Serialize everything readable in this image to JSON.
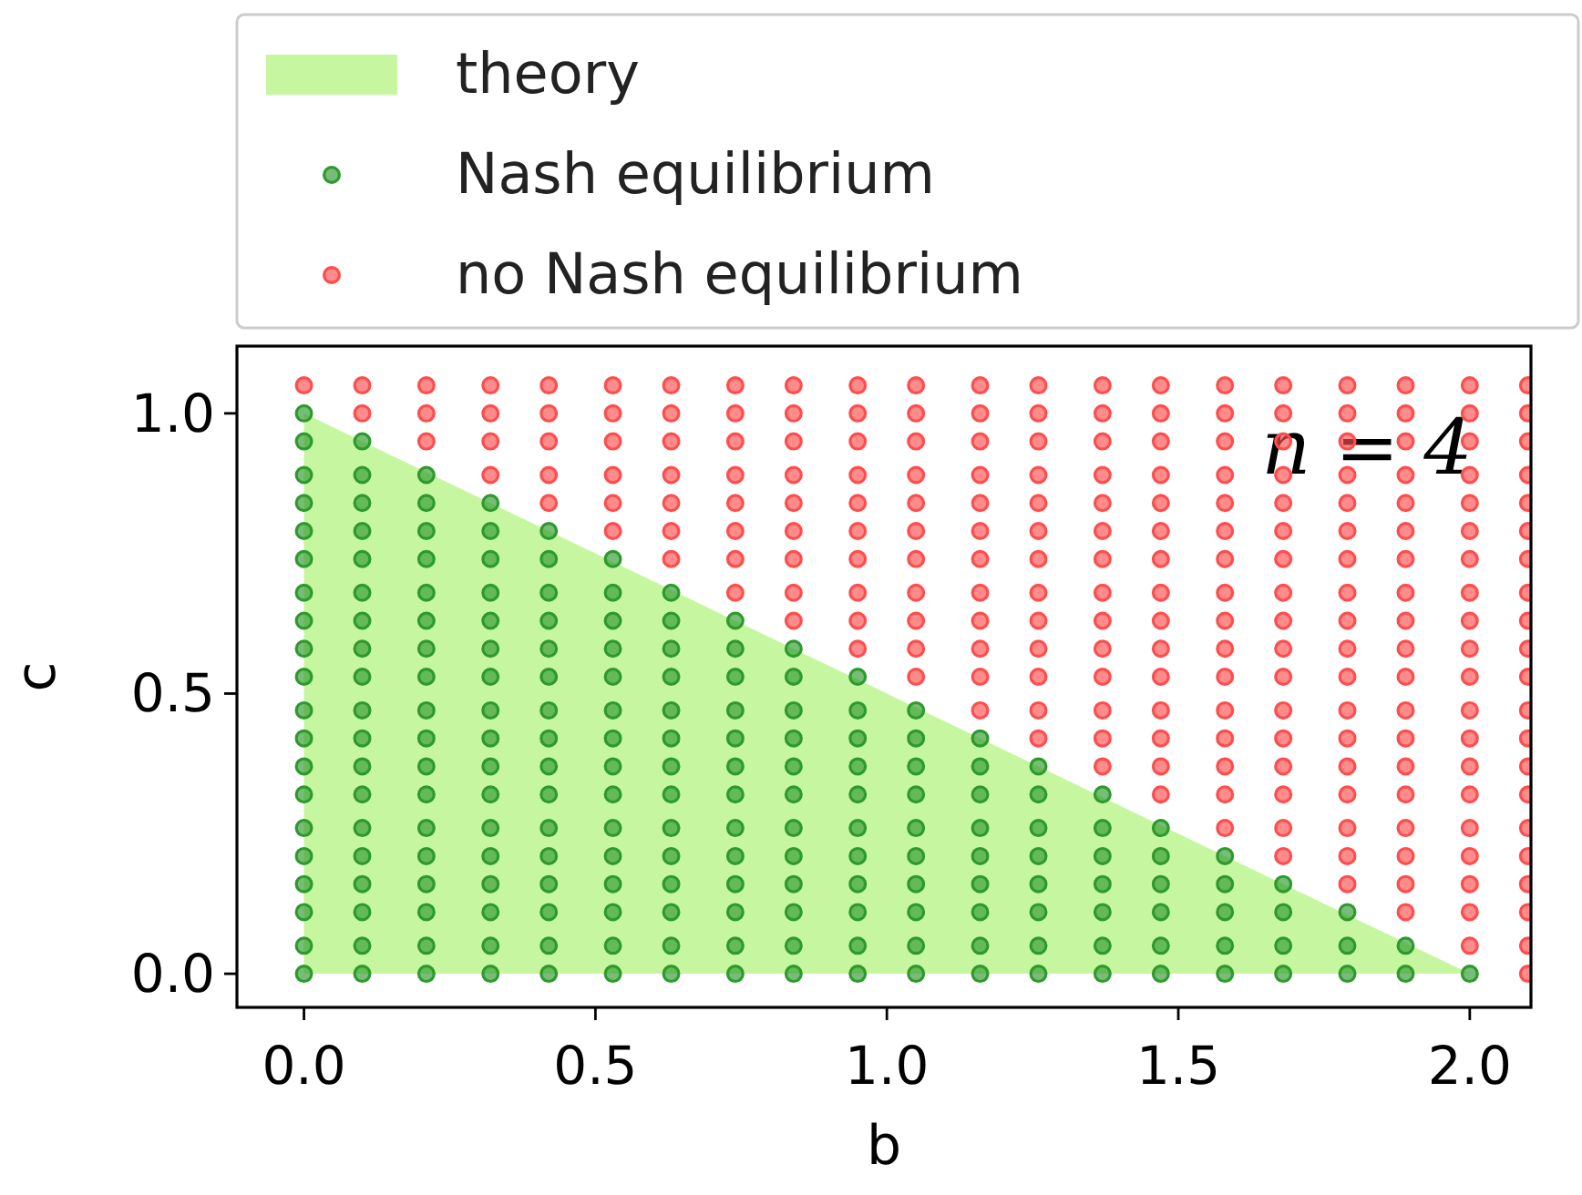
{
  "chart_data": {
    "type": "scatter",
    "xlabel": "b",
    "ylabel": "c",
    "xlim": [
      -0.115,
      2.105
    ],
    "ylim": [
      -0.06,
      1.12
    ],
    "xticks": [
      {
        "value": 0,
        "label": "0.0"
      },
      {
        "value": 0.5,
        "label": "0.5"
      },
      {
        "value": 1,
        "label": "1.0"
      },
      {
        "value": 1.5,
        "label": "1.5"
      },
      {
        "value": 2,
        "label": "2.0"
      }
    ],
    "yticks": [
      {
        "value": 0,
        "label": "0.0"
      },
      {
        "value": 0.5,
        "label": "0.5"
      },
      {
        "value": 1,
        "label": "1.0"
      }
    ],
    "legend": "top",
    "annotations": [
      "n = 4"
    ],
    "series": [
      {
        "name": "theory",
        "type": "area",
        "color": "#c6f7a0",
        "x": [
          0,
          2
        ],
        "values": [
          1,
          0
        ]
      },
      {
        "name": "Nash equilibrium",
        "color": "#2e9a2e",
        "marker": "circle",
        "x": [
          0,
          0,
          0,
          0,
          0,
          0,
          0,
          0,
          0,
          0,
          0,
          0,
          0,
          0,
          0,
          0,
          0,
          0,
          0,
          0,
          0.1,
          0.1,
          0.1,
          0.1,
          0.1,
          0.1,
          0.1,
          0.1,
          0.1,
          0.1,
          0.1,
          0.1,
          0.1,
          0.1,
          0.1,
          0.1,
          0.1,
          0.1,
          0.1,
          0.21,
          0.21,
          0.21,
          0.21,
          0.21,
          0.21,
          0.21,
          0.21,
          0.21,
          0.21,
          0.21,
          0.21,
          0.21,
          0.21,
          0.21,
          0.21,
          0.21,
          0.21,
          0.32,
          0.32,
          0.32,
          0.32,
          0.32,
          0.32,
          0.32,
          0.32,
          0.32,
          0.32,
          0.32,
          0.32,
          0.32,
          0.32,
          0.32,
          0.32,
          0.32,
          0.42,
          0.42,
          0.42,
          0.42,
          0.42,
          0.42,
          0.42,
          0.42,
          0.42,
          0.42,
          0.42,
          0.42,
          0.42,
          0.42,
          0.42,
          0.42,
          0.53,
          0.53,
          0.53,
          0.53,
          0.53,
          0.53,
          0.53,
          0.53,
          0.53,
          0.53,
          0.53,
          0.53,
          0.53,
          0.53,
          0.53,
          0.63,
          0.63,
          0.63,
          0.63,
          0.63,
          0.63,
          0.63,
          0.63,
          0.63,
          0.63,
          0.63,
          0.63,
          0.63,
          0.63,
          0.74,
          0.74,
          0.74,
          0.74,
          0.74,
          0.74,
          0.74,
          0.74,
          0.74,
          0.74,
          0.74,
          0.74,
          0.74,
          0.84,
          0.84,
          0.84,
          0.84,
          0.84,
          0.84,
          0.84,
          0.84,
          0.84,
          0.84,
          0.84,
          0.84,
          0.95,
          0.95,
          0.95,
          0.95,
          0.95,
          0.95,
          0.95,
          0.95,
          0.95,
          0.95,
          0.95,
          1.05,
          1.05,
          1.05,
          1.05,
          1.05,
          1.05,
          1.05,
          1.05,
          1.05,
          1.05,
          1.16,
          1.16,
          1.16,
          1.16,
          1.16,
          1.16,
          1.16,
          1.16,
          1.16,
          1.26,
          1.26,
          1.26,
          1.26,
          1.26,
          1.26,
          1.26,
          1.26,
          1.37,
          1.37,
          1.37,
          1.37,
          1.37,
          1.37,
          1.37,
          1.47,
          1.47,
          1.47,
          1.47,
          1.47,
          1.47,
          1.58,
          1.58,
          1.58,
          1.58,
          1.58,
          1.68,
          1.68,
          1.68,
          1.68,
          1.79,
          1.79,
          1.79,
          1.89,
          1.89,
          2.0
        ],
        "values": [
          0,
          0.05,
          0.11,
          0.16,
          0.21,
          0.26,
          0.32,
          0.37,
          0.42,
          0.47,
          0.53,
          0.58,
          0.63,
          0.68,
          0.74,
          0.79,
          0.84,
          0.89,
          0.95,
          1.0,
          0,
          0.05,
          0.11,
          0.16,
          0.21,
          0.26,
          0.32,
          0.37,
          0.42,
          0.47,
          0.53,
          0.58,
          0.63,
          0.68,
          0.74,
          0.79,
          0.84,
          0.89,
          0.95,
          0,
          0.05,
          0.11,
          0.16,
          0.21,
          0.26,
          0.32,
          0.37,
          0.42,
          0.47,
          0.53,
          0.58,
          0.63,
          0.68,
          0.74,
          0.79,
          0.84,
          0.89,
          0,
          0.05,
          0.11,
          0.16,
          0.21,
          0.26,
          0.32,
          0.37,
          0.42,
          0.47,
          0.53,
          0.58,
          0.63,
          0.68,
          0.74,
          0.79,
          0.84,
          0,
          0.05,
          0.11,
          0.16,
          0.21,
          0.26,
          0.32,
          0.37,
          0.42,
          0.47,
          0.53,
          0.58,
          0.63,
          0.68,
          0.74,
          0.79,
          0,
          0.05,
          0.11,
          0.16,
          0.21,
          0.26,
          0.32,
          0.37,
          0.42,
          0.47,
          0.53,
          0.58,
          0.63,
          0.68,
          0.74,
          0,
          0.05,
          0.11,
          0.16,
          0.21,
          0.26,
          0.32,
          0.37,
          0.42,
          0.47,
          0.53,
          0.58,
          0.63,
          0.68,
          0,
          0.05,
          0.11,
          0.16,
          0.21,
          0.26,
          0.32,
          0.37,
          0.42,
          0.47,
          0.53,
          0.58,
          0.63,
          0,
          0.05,
          0.11,
          0.16,
          0.21,
          0.26,
          0.32,
          0.37,
          0.42,
          0.47,
          0.53,
          0.58,
          0,
          0.05,
          0.11,
          0.16,
          0.21,
          0.26,
          0.32,
          0.37,
          0.42,
          0.47,
          0.53,
          0,
          0.05,
          0.11,
          0.16,
          0.21,
          0.26,
          0.32,
          0.37,
          0.42,
          0.47,
          0,
          0.05,
          0.11,
          0.16,
          0.21,
          0.26,
          0.32,
          0.37,
          0.42,
          0,
          0.05,
          0.11,
          0.16,
          0.21,
          0.26,
          0.32,
          0.37,
          0,
          0.05,
          0.11,
          0.16,
          0.21,
          0.26,
          0.32,
          0,
          0.05,
          0.11,
          0.16,
          0.21,
          0.26,
          0,
          0.05,
          0.11,
          0.16,
          0.21,
          0,
          0.05,
          0.11,
          0.16,
          0,
          0.05,
          0.11,
          0,
          0.05,
          0
        ]
      },
      {
        "name": "no Nash equilibrium",
        "color": "#ff4d4d",
        "marker": "circle",
        "x": [
          0,
          0.1,
          0.1,
          0.21,
          0.21,
          0.21,
          0.32,
          0.32,
          0.32,
          0.32,
          0.42,
          0.42,
          0.42,
          0.42,
          0.42,
          0.53,
          0.53,
          0.53,
          0.53,
          0.53,
          0.53,
          0.63,
          0.63,
          0.63,
          0.63,
          0.63,
          0.63,
          0.63,
          0.74,
          0.74,
          0.74,
          0.74,
          0.74,
          0.74,
          0.74,
          0.74,
          0.84,
          0.84,
          0.84,
          0.84,
          0.84,
          0.84,
          0.84,
          0.84,
          0.84,
          0.95,
          0.95,
          0.95,
          0.95,
          0.95,
          0.95,
          0.95,
          0.95,
          0.95,
          0.95,
          1.05,
          1.05,
          1.05,
          1.05,
          1.05,
          1.05,
          1.05,
          1.05,
          1.05,
          1.05,
          1.05,
          1.16,
          1.16,
          1.16,
          1.16,
          1.16,
          1.16,
          1.16,
          1.16,
          1.16,
          1.16,
          1.16,
          1.16,
          1.26,
          1.26,
          1.26,
          1.26,
          1.26,
          1.26,
          1.26,
          1.26,
          1.26,
          1.26,
          1.26,
          1.26,
          1.26,
          1.37,
          1.37,
          1.37,
          1.37,
          1.37,
          1.37,
          1.37,
          1.37,
          1.37,
          1.37,
          1.37,
          1.37,
          1.37,
          1.37,
          1.47,
          1.47,
          1.47,
          1.47,
          1.47,
          1.47,
          1.47,
          1.47,
          1.47,
          1.47,
          1.47,
          1.47,
          1.47,
          1.47,
          1.47,
          1.58,
          1.58,
          1.58,
          1.58,
          1.58,
          1.58,
          1.58,
          1.58,
          1.58,
          1.58,
          1.58,
          1.58,
          1.58,
          1.58,
          1.58,
          1.58,
          1.68,
          1.68,
          1.68,
          1.68,
          1.68,
          1.68,
          1.68,
          1.68,
          1.68,
          1.68,
          1.68,
          1.68,
          1.68,
          1.68,
          1.68,
          1.68,
          1.68,
          1.79,
          1.79,
          1.79,
          1.79,
          1.79,
          1.79,
          1.79,
          1.79,
          1.79,
          1.79,
          1.79,
          1.79,
          1.79,
          1.79,
          1.79,
          1.79,
          1.79,
          1.79,
          1.89,
          1.89,
          1.89,
          1.89,
          1.89,
          1.89,
          1.89,
          1.89,
          1.89,
          1.89,
          1.89,
          1.89,
          1.89,
          1.89,
          1.89,
          1.89,
          1.89,
          1.89,
          1.89,
          2.0,
          2.0,
          2.0,
          2.0,
          2.0,
          2.0,
          2.0,
          2.0,
          2.0,
          2.0,
          2.0,
          2.0,
          2.0,
          2.0,
          2.0,
          2.0,
          2.0,
          2.0,
          2.0,
          2.0,
          2.1,
          2.1,
          2.1,
          2.1,
          2.1,
          2.1,
          2.1,
          2.1,
          2.1,
          2.1,
          2.1,
          2.1,
          2.1,
          2.1,
          2.1,
          2.1,
          2.1,
          2.1,
          2.1,
          2.1,
          2.1
        ],
        "values": [
          1.05,
          1.0,
          1.05,
          0.95,
          1.0,
          1.05,
          0.89,
          0.95,
          1.0,
          1.05,
          0.84,
          0.89,
          0.95,
          1.0,
          1.05,
          0.79,
          0.84,
          0.89,
          0.95,
          1.0,
          1.05,
          0.74,
          0.79,
          0.84,
          0.89,
          0.95,
          1.0,
          1.05,
          0.68,
          0.74,
          0.79,
          0.84,
          0.89,
          0.95,
          1.0,
          1.05,
          0.63,
          0.68,
          0.74,
          0.79,
          0.84,
          0.89,
          0.95,
          1.0,
          1.05,
          0.58,
          0.63,
          0.68,
          0.74,
          0.79,
          0.84,
          0.89,
          0.95,
          1.0,
          1.05,
          0.53,
          0.58,
          0.63,
          0.68,
          0.74,
          0.79,
          0.84,
          0.89,
          0.95,
          1.0,
          1.05,
          0.47,
          0.53,
          0.58,
          0.63,
          0.68,
          0.74,
          0.79,
          0.84,
          0.89,
          0.95,
          1.0,
          1.05,
          0.42,
          0.47,
          0.53,
          0.58,
          0.63,
          0.68,
          0.74,
          0.79,
          0.84,
          0.89,
          0.95,
          1.0,
          1.05,
          0.37,
          0.42,
          0.47,
          0.53,
          0.58,
          0.63,
          0.68,
          0.74,
          0.79,
          0.84,
          0.89,
          0.95,
          1.0,
          1.05,
          0.32,
          0.37,
          0.42,
          0.47,
          0.53,
          0.58,
          0.63,
          0.68,
          0.74,
          0.79,
          0.84,
          0.89,
          0.95,
          1.0,
          1.05,
          0.26,
          0.32,
          0.37,
          0.42,
          0.47,
          0.53,
          0.58,
          0.63,
          0.68,
          0.74,
          0.79,
          0.84,
          0.89,
          0.95,
          1.0,
          1.05,
          0.21,
          0.26,
          0.32,
          0.37,
          0.42,
          0.47,
          0.53,
          0.58,
          0.63,
          0.68,
          0.74,
          0.79,
          0.84,
          0.89,
          0.95,
          1.0,
          1.05,
          0.16,
          0.21,
          0.26,
          0.32,
          0.37,
          0.42,
          0.47,
          0.53,
          0.58,
          0.63,
          0.68,
          0.74,
          0.79,
          0.84,
          0.89,
          0.95,
          1.0,
          1.05,
          0.11,
          0.16,
          0.21,
          0.26,
          0.32,
          0.37,
          0.42,
          0.47,
          0.53,
          0.58,
          0.63,
          0.68,
          0.74,
          0.79,
          0.84,
          0.89,
          0.95,
          1.0,
          1.05,
          0.05,
          0.11,
          0.16,
          0.21,
          0.26,
          0.32,
          0.37,
          0.42,
          0.47,
          0.53,
          0.58,
          0.63,
          0.68,
          0.74,
          0.79,
          0.84,
          0.89,
          0.95,
          1.0,
          1.05,
          0,
          0.05,
          0.11,
          0.16,
          0.21,
          0.26,
          0.32,
          0.37,
          0.42,
          0.47,
          0.53,
          0.58,
          0.63,
          0.68,
          0.74,
          0.79,
          0.84,
          0.89,
          0.95,
          1.0,
          1.05
        ]
      }
    ]
  }
}
